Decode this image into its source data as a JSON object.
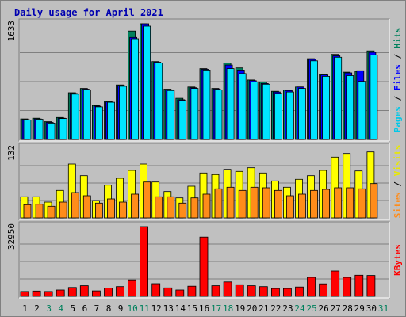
{
  "chart_data": {
    "type": "bar",
    "title": "Daily usage for April 2021",
    "categories": [
      "1",
      "2",
      "3",
      "4",
      "5",
      "6",
      "7",
      "8",
      "9",
      "10",
      "11",
      "12",
      "13",
      "14",
      "15",
      "16",
      "17",
      "18",
      "19",
      "20",
      "21",
      "22",
      "23",
      "24",
      "25",
      "26",
      "27",
      "28",
      "29",
      "30",
      "31"
    ],
    "weekend_days": [
      "3",
      "4",
      "10",
      "11",
      "17",
      "18",
      "24",
      "25",
      "31"
    ],
    "panels": [
      {
        "id": "hits-files-pages",
        "ymax_label": "1633",
        "ylim": [
          0,
          1633
        ],
        "label_parts": [
          "Pages",
          "Files",
          "Hits"
        ],
        "series": [
          {
            "name": "Hits",
            "color": "#00805C",
            "values": [
              290,
              300,
              250,
              310,
              660,
              720,
              480,
              540,
              770,
              1530,
              1633,
              1100,
              710,
              580,
              740,
              1000,
              720,
              1080,
              1010,
              840,
              810,
              680,
              700,
              740,
              1140,
              920,
              1200,
              950,
              960,
              1250,
              0
            ]
          },
          {
            "name": "Files",
            "color": "#0000FF",
            "values": [
              280,
              290,
              240,
              300,
              650,
              710,
              470,
              530,
              760,
              1440,
              1633,
              1090,
              700,
              560,
              730,
              990,
              710,
              1050,
              980,
              830,
              790,
              670,
              690,
              740,
              1130,
              910,
              1180,
              940,
              970,
              1230,
              0
            ]
          },
          {
            "name": "Pages",
            "color": "#00E5FF",
            "values": [
              275,
              285,
              230,
              295,
              640,
              700,
              460,
              525,
              750,
              1420,
              1600,
              1080,
              690,
              550,
              720,
              980,
              700,
              1000,
              930,
              810,
              780,
              650,
              670,
              720,
              1110,
              890,
              1160,
              900,
              820,
              1190,
              0
            ]
          }
        ]
      },
      {
        "id": "visits-sites",
        "ymax_label": "132",
        "ylim": [
          0,
          132
        ],
        "label_parts": [
          "Sites",
          "Visits"
        ],
        "series": [
          {
            "name": "Visits",
            "color": "#FFFF00",
            "values": [
              40,
              40,
              30,
              52,
              102,
              80,
              33,
              62,
              75,
              90,
              102,
              68,
              50,
              38,
              60,
              85,
              82,
              92,
              88,
              95,
              85,
              70,
              58,
              73,
              80,
              90,
              115,
              122,
              89,
              125,
              0
            ]
          },
          {
            "name": "Sites",
            "color": "#FF8C1A",
            "values": [
              25,
              26,
              22,
              30,
              48,
              42,
              28,
              36,
              30,
              45,
              68,
              40,
              40,
              28,
              38,
              45,
              55,
              58,
              52,
              58,
              57,
              52,
              42,
              45,
              52,
              54,
              57,
              57,
              55,
              65,
              0
            ]
          }
        ]
      },
      {
        "id": "kbytes",
        "ymax_label": "32950",
        "ylim": [
          0,
          32950
        ],
        "label_parts": [
          "KBytes"
        ],
        "series": [
          {
            "name": "KBytes",
            "color": "#FF0000",
            "values": [
              2300,
              2500,
              2300,
              3000,
              4200,
              5000,
              2600,
              3900,
              4600,
              7800,
              32950,
              6000,
              4000,
              3000,
              4800,
              28000,
              5000,
              6800,
              5500,
              5000,
              4600,
              3700,
              3700,
              4400,
              9000,
              5900,
              12000,
              9000,
              10000,
              9900,
              0
            ]
          }
        ]
      }
    ]
  }
}
